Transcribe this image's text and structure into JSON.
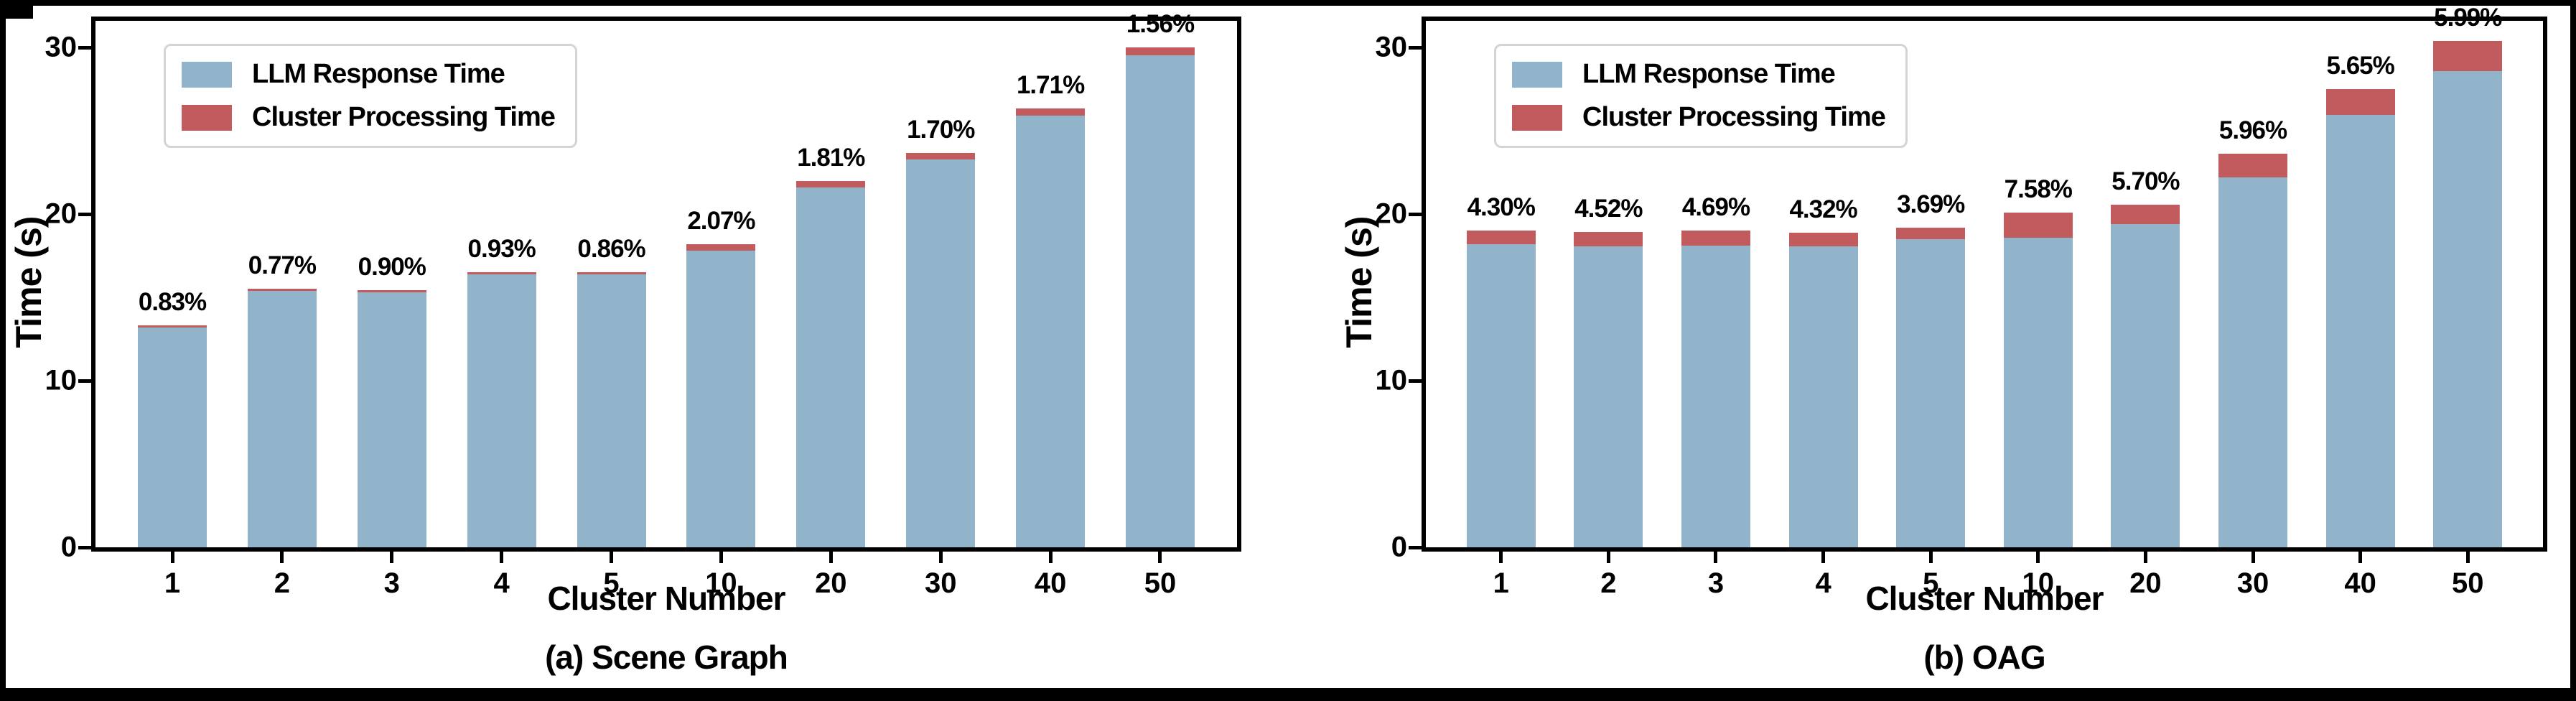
{
  "figure": {
    "frame_color": "#000000",
    "background": "#ffffff"
  },
  "colors": {
    "llm_blue": "#92b4ca",
    "cluster_red": "#c25b5e",
    "legend_border": "#d4d4d4",
    "axis": "#000000"
  },
  "chart_data": [
    {
      "type": "bar",
      "stacked": true,
      "caption": "(a) Scene Graph",
      "xlabel": "Cluster Number",
      "ylabel": "Time (s)",
      "categories": [
        "1",
        "2",
        "3",
        "4",
        "5",
        "10",
        "20",
        "30",
        "40",
        "50"
      ],
      "yticks": [
        "0",
        "10",
        "20",
        "30"
      ],
      "ylim": [
        0,
        31.6
      ],
      "grid": false,
      "legend_position": "upper-left",
      "series": [
        {
          "name": "LLM Response Time",
          "color": "#92b4ca",
          "values": [
            13.2,
            15.4,
            15.3,
            16.4,
            16.4,
            17.8,
            21.6,
            23.3,
            25.9,
            29.55
          ]
        },
        {
          "name": "Cluster Processing Time",
          "color": "#c25b5e",
          "values": [
            0.11,
            0.12,
            0.14,
            0.15,
            0.14,
            0.38,
            0.4,
            0.4,
            0.45,
            0.47
          ]
        }
      ],
      "bar_labels": [
        "0.83%",
        "0.77%",
        "0.90%",
        "0.93%",
        "0.86%",
        "2.07%",
        "1.81%",
        "1.70%",
        "1.71%",
        "1.56%"
      ]
    },
    {
      "type": "bar",
      "stacked": true,
      "caption": "(b) OAG",
      "xlabel": "Cluster Number",
      "ylabel": "Time (s)",
      "categories": [
        "1",
        "2",
        "3",
        "4",
        "5",
        "10",
        "20",
        "30",
        "40",
        "50"
      ],
      "yticks": [
        "0",
        "10",
        "20",
        "30"
      ],
      "ylim": [
        0,
        31.6
      ],
      "grid": false,
      "legend_position": "upper-left",
      "series": [
        {
          "name": "LLM Response Time",
          "color": "#92b4ca",
          "values": [
            18.2,
            18.05,
            18.1,
            18.05,
            18.5,
            18.6,
            19.4,
            22.2,
            25.95,
            28.6
          ]
        },
        {
          "name": "Cluster Processing Time",
          "color": "#c25b5e",
          "values": [
            0.82,
            0.85,
            0.89,
            0.81,
            0.71,
            1.52,
            1.17,
            1.41,
            1.55,
            1.82
          ]
        }
      ],
      "bar_labels": [
        "4.30%",
        "4.52%",
        "4.69%",
        "4.32%",
        "3.69%",
        "7.58%",
        "5.70%",
        "5.96%",
        "5.65%",
        "5.99%"
      ]
    }
  ]
}
